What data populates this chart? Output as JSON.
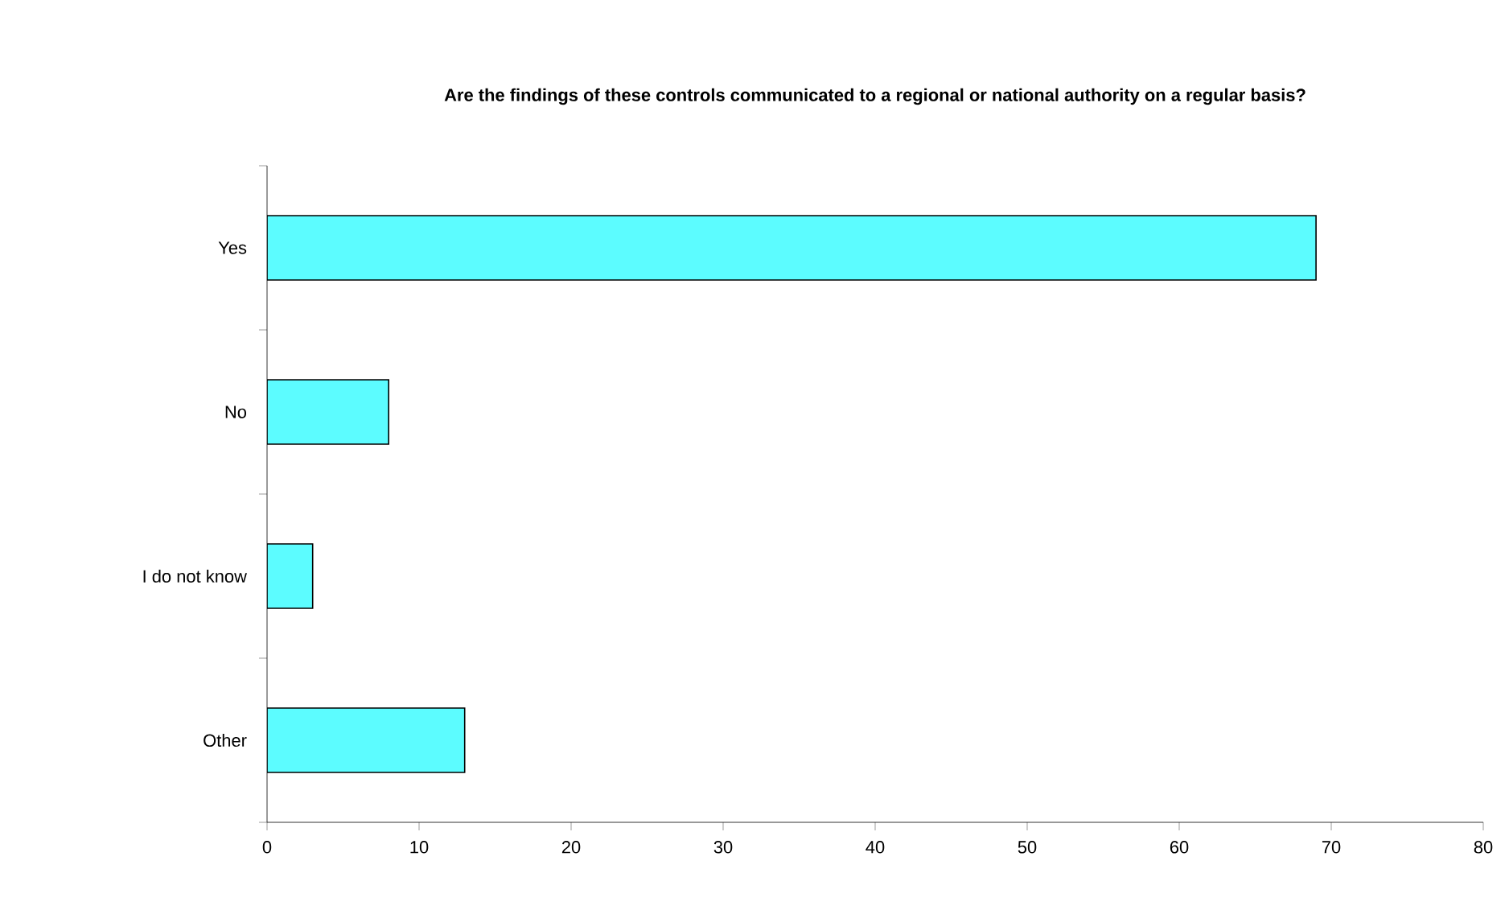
{
  "chart_data": {
    "type": "bar",
    "orientation": "horizontal",
    "title": "Are the findings of these controls communicated to a regional or national authority on a regular basis?",
    "categories": [
      "Yes",
      "No",
      "I do not know",
      "Other"
    ],
    "values": [
      69,
      8,
      3,
      13
    ],
    "color": "#5cfcff",
    "xlim": [
      0,
      80
    ],
    "xticks": [
      0,
      10,
      20,
      30,
      40,
      50,
      60,
      70,
      80
    ],
    "grid": false
  }
}
